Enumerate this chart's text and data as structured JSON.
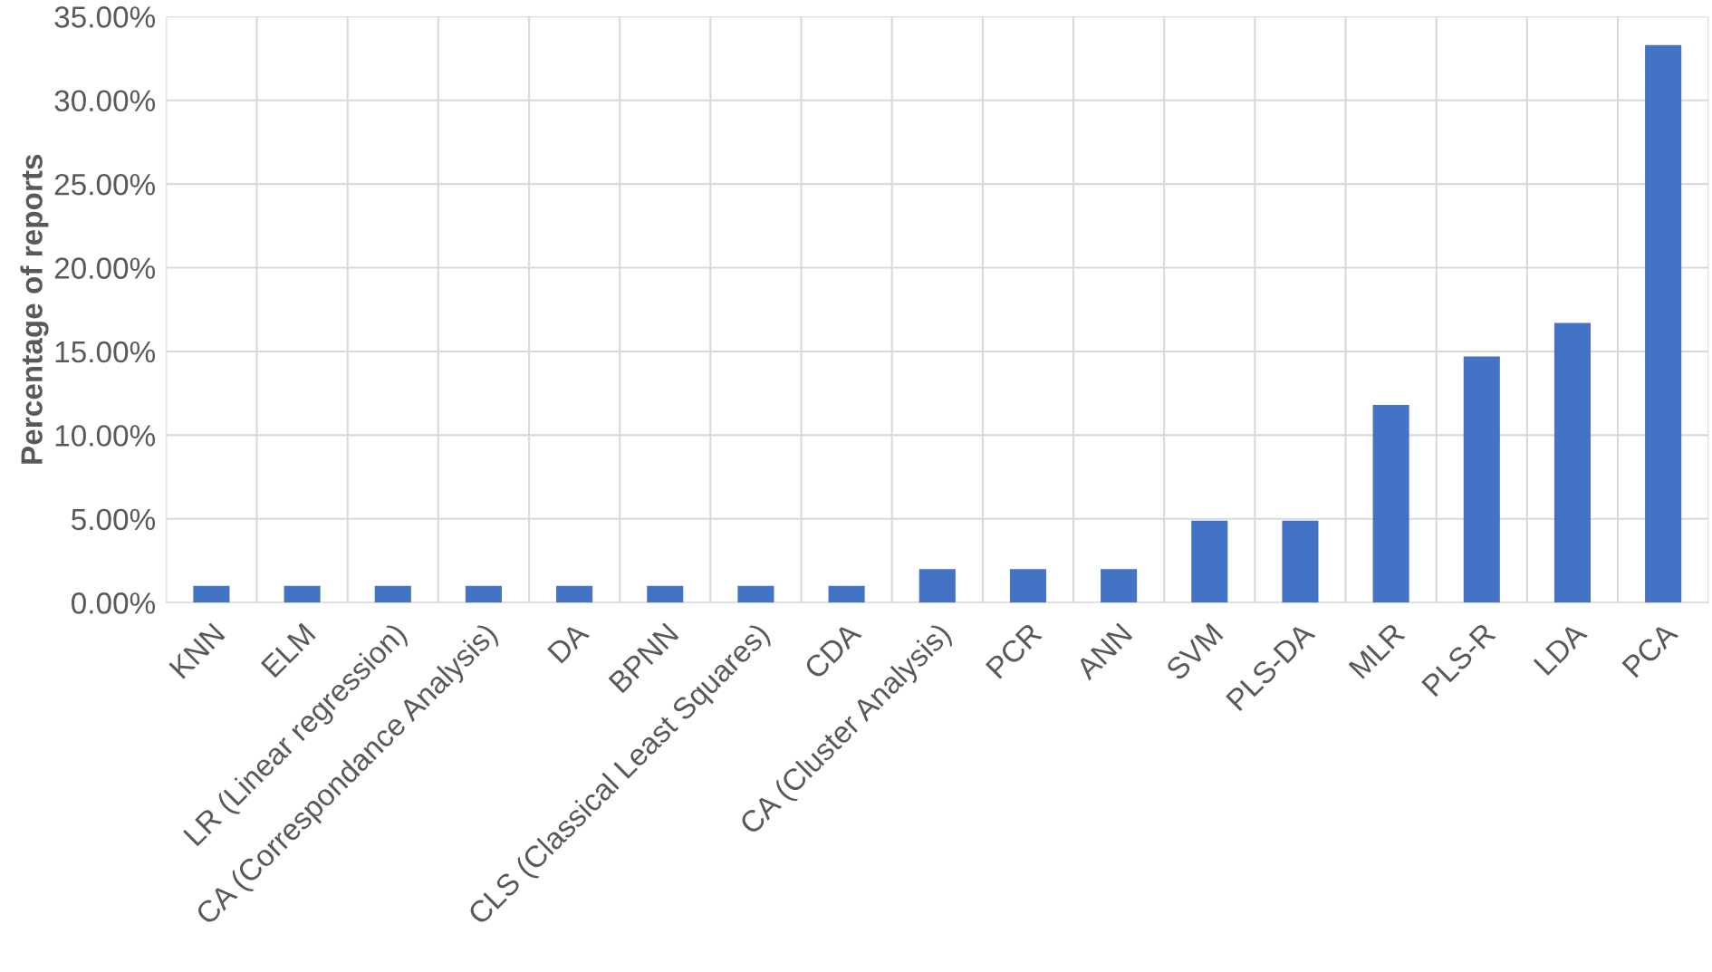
{
  "chart_data": {
    "type": "bar",
    "ylabel": "Percentage of reports",
    "categories": [
      "KNN",
      "ELM",
      "LR (Linear regression)",
      "CA (Correspondance Analysis)",
      "DA",
      "BPNN",
      "CLS (Classical Least Squares)",
      "CDA",
      "CA (Cluster Analysis)",
      "PCR",
      "ANN",
      "SVM",
      "PLS-DA",
      "MLR",
      "PLS-R",
      "LDA",
      "PCA"
    ],
    "values": [
      1.0,
      1.0,
      1.0,
      1.0,
      1.0,
      1.0,
      1.0,
      1.0,
      2.0,
      2.0,
      2.0,
      4.9,
      4.9,
      11.8,
      14.7,
      16.7,
      33.3
    ],
    "color": "#4472c4",
    "ylim": [
      0,
      35
    ],
    "yticks": [
      {
        "value": 0,
        "label": "0.00%"
      },
      {
        "value": 5,
        "label": "5.00%"
      },
      {
        "value": 10,
        "label": "10.00%"
      },
      {
        "value": 15,
        "label": "15.00%"
      },
      {
        "value": 20,
        "label": "20.00%"
      },
      {
        "value": 25,
        "label": "25.00%"
      },
      {
        "value": 30,
        "label": "30.00%"
      },
      {
        "value": 35,
        "label": "35.00%"
      }
    ],
    "grid": true
  }
}
